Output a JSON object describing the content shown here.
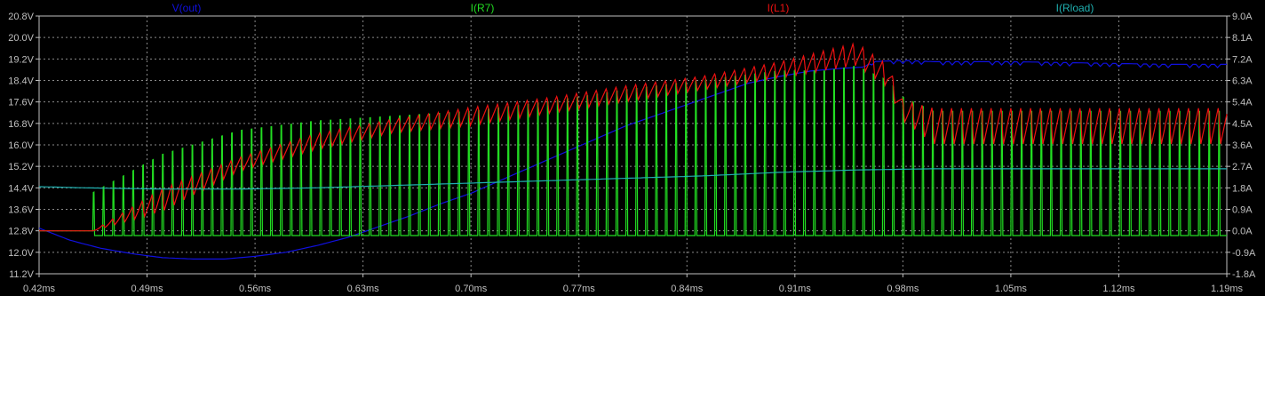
{
  "chart_data": {
    "type": "line",
    "xlabel": "",
    "x_ticks": [
      "0.42ms",
      "0.49ms",
      "0.56ms",
      "0.63ms",
      "0.70ms",
      "0.77ms",
      "0.84ms",
      "0.91ms",
      "0.98ms",
      "1.05ms",
      "1.12ms",
      "1.19ms"
    ],
    "xlim": [
      0.42,
      1.19
    ],
    "x_unit": "ms",
    "left_axis": {
      "ticks": [
        "20.8V",
        "20.0V",
        "19.2V",
        "18.4V",
        "17.6V",
        "16.8V",
        "16.0V",
        "15.2V",
        "14.4V",
        "13.6V",
        "12.8V",
        "12.0V",
        "11.2V"
      ],
      "ylim": [
        11.2,
        20.8
      ],
      "unit": "V"
    },
    "right_axis": {
      "ticks": [
        "9.0A",
        "8.1A",
        "7.2A",
        "6.3A",
        "5.4A",
        "4.5A",
        "3.6A",
        "2.7A",
        "1.8A",
        "0.9A",
        "0.0A",
        "-0.9A",
        "-1.8A"
      ],
      "ylim": [
        -1.8,
        9.0
      ],
      "unit": "A"
    },
    "grid": true,
    "background": "#000000",
    "series": [
      {
        "name": "V(out)",
        "axis": "left",
        "color": "#1010e0",
        "x": [
          0.42,
          0.44,
          0.46,
          0.48,
          0.5,
          0.52,
          0.54,
          0.56,
          0.58,
          0.6,
          0.62,
          0.64,
          0.66,
          0.68,
          0.7,
          0.72,
          0.74,
          0.76,
          0.78,
          0.8,
          0.82,
          0.84,
          0.86,
          0.88,
          0.9,
          0.92,
          0.94,
          0.955,
          0.96,
          0.98,
          1.0,
          1.05,
          1.1,
          1.15,
          1.19
        ],
        "values": [
          12.9,
          12.45,
          12.15,
          11.95,
          11.8,
          11.75,
          11.75,
          11.85,
          12.0,
          12.25,
          12.55,
          12.95,
          13.35,
          13.8,
          14.2,
          14.7,
          15.2,
          15.7,
          16.2,
          16.7,
          17.1,
          17.5,
          17.9,
          18.3,
          18.55,
          18.75,
          18.85,
          18.9,
          19.1,
          19.15,
          19.1,
          19.1,
          19.05,
          19.0,
          19.0
        ]
      },
      {
        "name": "I(R7)",
        "axis": "right",
        "color": "#22dd22",
        "style": "pulse",
        "x_switch_start": 0.455,
        "period_ms": 0.0064,
        "low_value": -0.2,
        "peak_x": [
          0.42,
          0.455,
          0.5,
          0.55,
          0.6,
          0.65,
          0.7,
          0.75,
          0.8,
          0.85,
          0.9,
          0.93,
          0.95,
          0.97,
          0.98,
          1.0,
          1.1,
          1.19
        ],
        "peak_values": [
          0.0,
          1.6,
          3.2,
          4.2,
          4.6,
          4.8,
          5.0,
          5.4,
          5.9,
          6.3,
          6.7,
          6.7,
          6.9,
          6.3,
          5.6,
          5.0,
          5.0,
          5.0
        ]
      },
      {
        "name": "I(L1)",
        "axis": "right",
        "color": "#ee1111",
        "style": "sawtooth",
        "x": [
          0.42,
          0.455,
          0.5,
          0.55,
          0.6,
          0.65,
          0.7,
          0.75,
          0.8,
          0.85,
          0.9,
          0.93,
          0.95,
          0.97,
          0.98,
          1.0,
          1.1,
          1.19
        ],
        "upper": [
          0.0,
          0.0,
          1.8,
          3.1,
          4.1,
          4.7,
          5.2,
          5.6,
          6.1,
          6.5,
          7.1,
          7.6,
          7.9,
          7.0,
          5.5,
          5.2,
          5.2,
          5.2
        ],
        "lower": [
          0.0,
          0.0,
          0.8,
          2.5,
          3.4,
          4.1,
          4.4,
          4.9,
          5.4,
          5.9,
          6.4,
          6.7,
          6.9,
          6.0,
          4.6,
          3.6,
          3.6,
          3.6
        ]
      },
      {
        "name": "I(Rload)",
        "axis": "right",
        "color": "#1fb0b0",
        "x": [
          0.42,
          0.45,
          0.5,
          0.55,
          0.6,
          0.65,
          0.7,
          0.75,
          0.8,
          0.85,
          0.9,
          0.95,
          1.0,
          1.05,
          1.1,
          1.15,
          1.19
        ],
        "values": [
          1.85,
          1.8,
          1.75,
          1.75,
          1.8,
          1.9,
          2.0,
          2.1,
          2.2,
          2.3,
          2.45,
          2.55,
          2.6,
          2.6,
          2.6,
          2.6,
          2.6
        ]
      }
    ]
  }
}
